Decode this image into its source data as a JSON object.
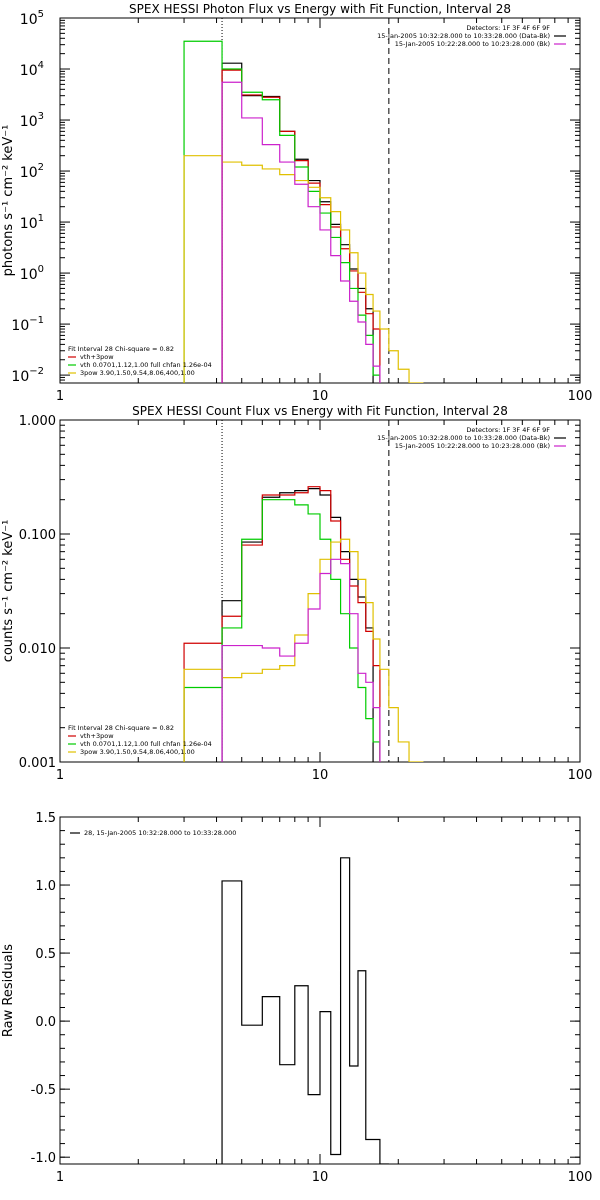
{
  "chart_data": [
    {
      "type": "line",
      "step": true,
      "title": "SPEX HESSI Photon Flux vs Energy with Fit Function, Interval 28",
      "xlabel": "",
      "ylabel": "photons s⁻¹ cm⁻² keV⁻¹",
      "xscale": "log",
      "yscale": "log",
      "xlim": [
        1,
        100
      ],
      "ylim": [
        0.007,
        100000
      ],
      "xticks": [
        {
          "v": 1,
          "label": "1"
        },
        {
          "v": 10,
          "label": "10"
        },
        {
          "v": 100,
          "label": "100"
        }
      ],
      "yticks": [
        {
          "v": 0.01,
          "base": "10",
          "exp": "−2"
        },
        {
          "v": 0.1,
          "base": "10",
          "exp": "−1"
        },
        {
          "v": 1,
          "base": "10",
          "exp": "0"
        },
        {
          "v": 10,
          "base": "10",
          "exp": "1"
        },
        {
          "v": 100,
          "base": "10",
          "exp": "2"
        },
        {
          "v": 1000,
          "base": "10",
          "exp": "3"
        },
        {
          "v": 10000,
          "base": "10",
          "exp": "4"
        },
        {
          "v": 100000,
          "base": "10",
          "exp": "5"
        }
      ],
      "vlines": [
        {
          "x": 4.2,
          "style": "dotted",
          "color": "#000000"
        },
        {
          "x": 4.2,
          "style": "solid",
          "color": "#cc22cc"
        },
        {
          "x": 18.4,
          "style": "dashed",
          "color": "#000000"
        }
      ],
      "legend_tr": [
        "Detectors: 1F 3F 4F 6F 9F",
        "15-Jan-2005 10:32:28.000 to 10:33:28.000 (Data-Bk)",
        "15-Jan-2005 10:22:28.000 to 10:23:28.000 (Bk)"
      ],
      "legend_tr_colors": [
        "",
        "#000000",
        "#cc22cc"
      ],
      "legend_bl": [
        {
          "text": "Fit Interval 28   Chi-square = 0.82",
          "color": ""
        },
        {
          "text": "vth+3pow",
          "color": "#d00000"
        },
        {
          "text": "vth 0.0701,1.12,1.00  full chfan 1.26e-04",
          "color": "#00cc00"
        },
        {
          "text": "3pow 3.90,1.50,9.54,8.06,400,1.00",
          "color": "#e0c000"
        }
      ],
      "edges": [
        3.0,
        4.2,
        5.0,
        6.0,
        7.0,
        8.0,
        9.0,
        10.0,
        11.0,
        12.0,
        13.0,
        14.0,
        15.0,
        16.0,
        17.0,
        18.4,
        20.0,
        22.0,
        25.0
      ],
      "series": [
        {
          "color": "#000000",
          "values": [
            null,
            13000,
            3000,
            2900,
            600,
            170,
            65,
            25,
            9,
            3.6,
            1.2,
            0.5,
            0.2,
            null,
            null,
            null,
            null,
            null
          ]
        },
        {
          "color": "#d00000",
          "values": [
            null,
            9500,
            3100,
            2800,
            600,
            160,
            58,
            22,
            8,
            3.0,
            1.1,
            0.42,
            0.16,
            0.08,
            null,
            null,
            null,
            null
          ]
        },
        {
          "color": "#00cc00",
          "values": [
            35000,
            10000,
            3500,
            2500,
            500,
            120,
            40,
            15,
            5,
            1.6,
            0.5,
            0.15,
            0.06,
            0.01,
            null,
            null,
            null,
            null
          ]
        },
        {
          "color": "#e0c000",
          "values": [
            200,
            150,
            130,
            110,
            85,
            65,
            48,
            30,
            16,
            7,
            2.5,
            1.0,
            0.38,
            0.18,
            0.08,
            0.03,
            0.013,
            0.007
          ]
        },
        {
          "color": "#cc22cc",
          "values": [
            null,
            5500,
            1100,
            330,
            150,
            55,
            20,
            7,
            2.2,
            0.7,
            0.28,
            0.11,
            0.04,
            0.015,
            null,
            null,
            null,
            null
          ]
        }
      ]
    },
    {
      "type": "line",
      "step": true,
      "title": "SPEX HESSI Count Flux vs Energy with Fit Function, Interval 28",
      "xlabel": "",
      "ylabel": "counts s⁻¹ cm⁻² keV⁻¹",
      "xscale": "log",
      "yscale": "log",
      "xlim": [
        1,
        100
      ],
      "ylim": [
        0.001,
        1
      ],
      "xticks": [
        {
          "v": 1,
          "label": "1"
        },
        {
          "v": 10,
          "label": "10"
        },
        {
          "v": 100,
          "label": "100"
        }
      ],
      "yticks": [
        {
          "v": 0.001,
          "label": "0.001"
        },
        {
          "v": 0.01,
          "label": "0.010"
        },
        {
          "v": 0.1,
          "label": "0.100"
        },
        {
          "v": 1,
          "label": "1.000"
        }
      ],
      "vlines": [
        {
          "x": 4.2,
          "style": "dotted",
          "color": "#000000"
        },
        {
          "x": 4.2,
          "style": "solid",
          "color": "#cc22cc"
        },
        {
          "x": 18.4,
          "style": "dashed",
          "color": "#000000"
        }
      ],
      "legend_tr": [
        "Detectors: 1F 3F 4F 6F 9F",
        "15-Jan-2005 10:32:28.000 to 10:33:28.000 (Data-Bk)",
        "15-Jan-2005 10:22:28.000 to 10:23:28.000 (Bk)"
      ],
      "legend_tr_colors": [
        "",
        "#000000",
        "#cc22cc"
      ],
      "legend_bl": [
        {
          "text": "Fit Interval 28   Chi-square = 0.82",
          "color": ""
        },
        {
          "text": "vth+3pow",
          "color": "#d00000"
        },
        {
          "text": "vth 0.0701,1.12,1.00  full chfan 1.26e-04",
          "color": "#00cc00"
        },
        {
          "text": "3pow 3.90,1.50,9.54,8.06,400,1.00",
          "color": "#e0c000"
        }
      ],
      "edges": [
        3.0,
        4.2,
        5.0,
        6.0,
        7.0,
        8.0,
        9.0,
        10.0,
        11.0,
        12.0,
        13.0,
        14.0,
        15.0,
        16.0,
        17.0,
        18.4,
        20.0,
        22.0,
        25.0
      ],
      "series": [
        {
          "color": "#000000",
          "values": [
            null,
            0.026,
            0.085,
            0.21,
            0.23,
            0.24,
            0.25,
            0.22,
            0.14,
            0.07,
            0.04,
            0.028,
            0.015,
            null,
            null,
            null,
            null,
            null
          ]
        },
        {
          "color": "#d00000",
          "values": [
            0.011,
            0.019,
            0.08,
            0.22,
            0.22,
            0.23,
            0.26,
            0.24,
            0.13,
            0.06,
            0.035,
            0.025,
            0.014,
            0.007,
            null,
            null,
            null,
            null
          ]
        },
        {
          "color": "#00cc00",
          "values": [
            0.0045,
            0.015,
            0.09,
            0.2,
            0.2,
            0.18,
            0.15,
            0.09,
            0.04,
            0.02,
            0.01,
            0.0045,
            0.0024,
            0.0015,
            null,
            null,
            null,
            null
          ]
        },
        {
          "color": "#e0c000",
          "values": [
            0.0065,
            0.0055,
            0.006,
            0.0065,
            0.007,
            0.013,
            0.03,
            0.06,
            0.085,
            0.09,
            0.07,
            0.04,
            0.025,
            0.012,
            0.0065,
            0.003,
            0.0015,
            0.001
          ]
        },
        {
          "color": "#cc22cc",
          "values": [
            null,
            0.0105,
            0.0105,
            0.01,
            0.0085,
            0.011,
            0.022,
            0.045,
            0.06,
            0.055,
            0.02,
            0.006,
            0.005,
            0.003,
            null,
            null,
            null,
            null
          ]
        }
      ]
    },
    {
      "type": "line",
      "step": true,
      "title": "",
      "xlabel": "",
      "ylabel": "Raw Residuals",
      "xscale": "log",
      "yscale": "linear",
      "xlim": [
        1,
        100
      ],
      "ylim": [
        -1.05,
        1.5
      ],
      "xticks": [
        {
          "v": 1,
          "label": "1"
        },
        {
          "v": 10,
          "label": "10"
        },
        {
          "v": 100,
          "label": "100"
        }
      ],
      "yticks": [
        {
          "v": -1.0,
          "label": "-1.0"
        },
        {
          "v": -0.5,
          "label": "-0.5"
        },
        {
          "v": 0.0,
          "label": "0.0"
        },
        {
          "v": 0.5,
          "label": "0.5"
        },
        {
          "v": 1.0,
          "label": "1.0"
        },
        {
          "v": 1.5,
          "label": "1.5"
        }
      ],
      "vlines": [],
      "legend_tl": [
        {
          "text": "28, 15-Jan-2005 10:32:28.000 to 10:33:28.000",
          "color": "#000000"
        }
      ],
      "edges": [
        4.2,
        5.0,
        6.0,
        7.0,
        8.0,
        9.0,
        10.0,
        11.0,
        12.0,
        13.0,
        14.0,
        15.0,
        16.0,
        17.0,
        18.4
      ],
      "series": [
        {
          "color": "#000000",
          "values": [
            1.03,
            -0.03,
            0.18,
            -0.32,
            0.26,
            -0.54,
            0.07,
            -0.98,
            1.2,
            -0.33,
            0.37,
            -0.87,
            -0.87,
            -1.05
          ]
        }
      ]
    }
  ]
}
